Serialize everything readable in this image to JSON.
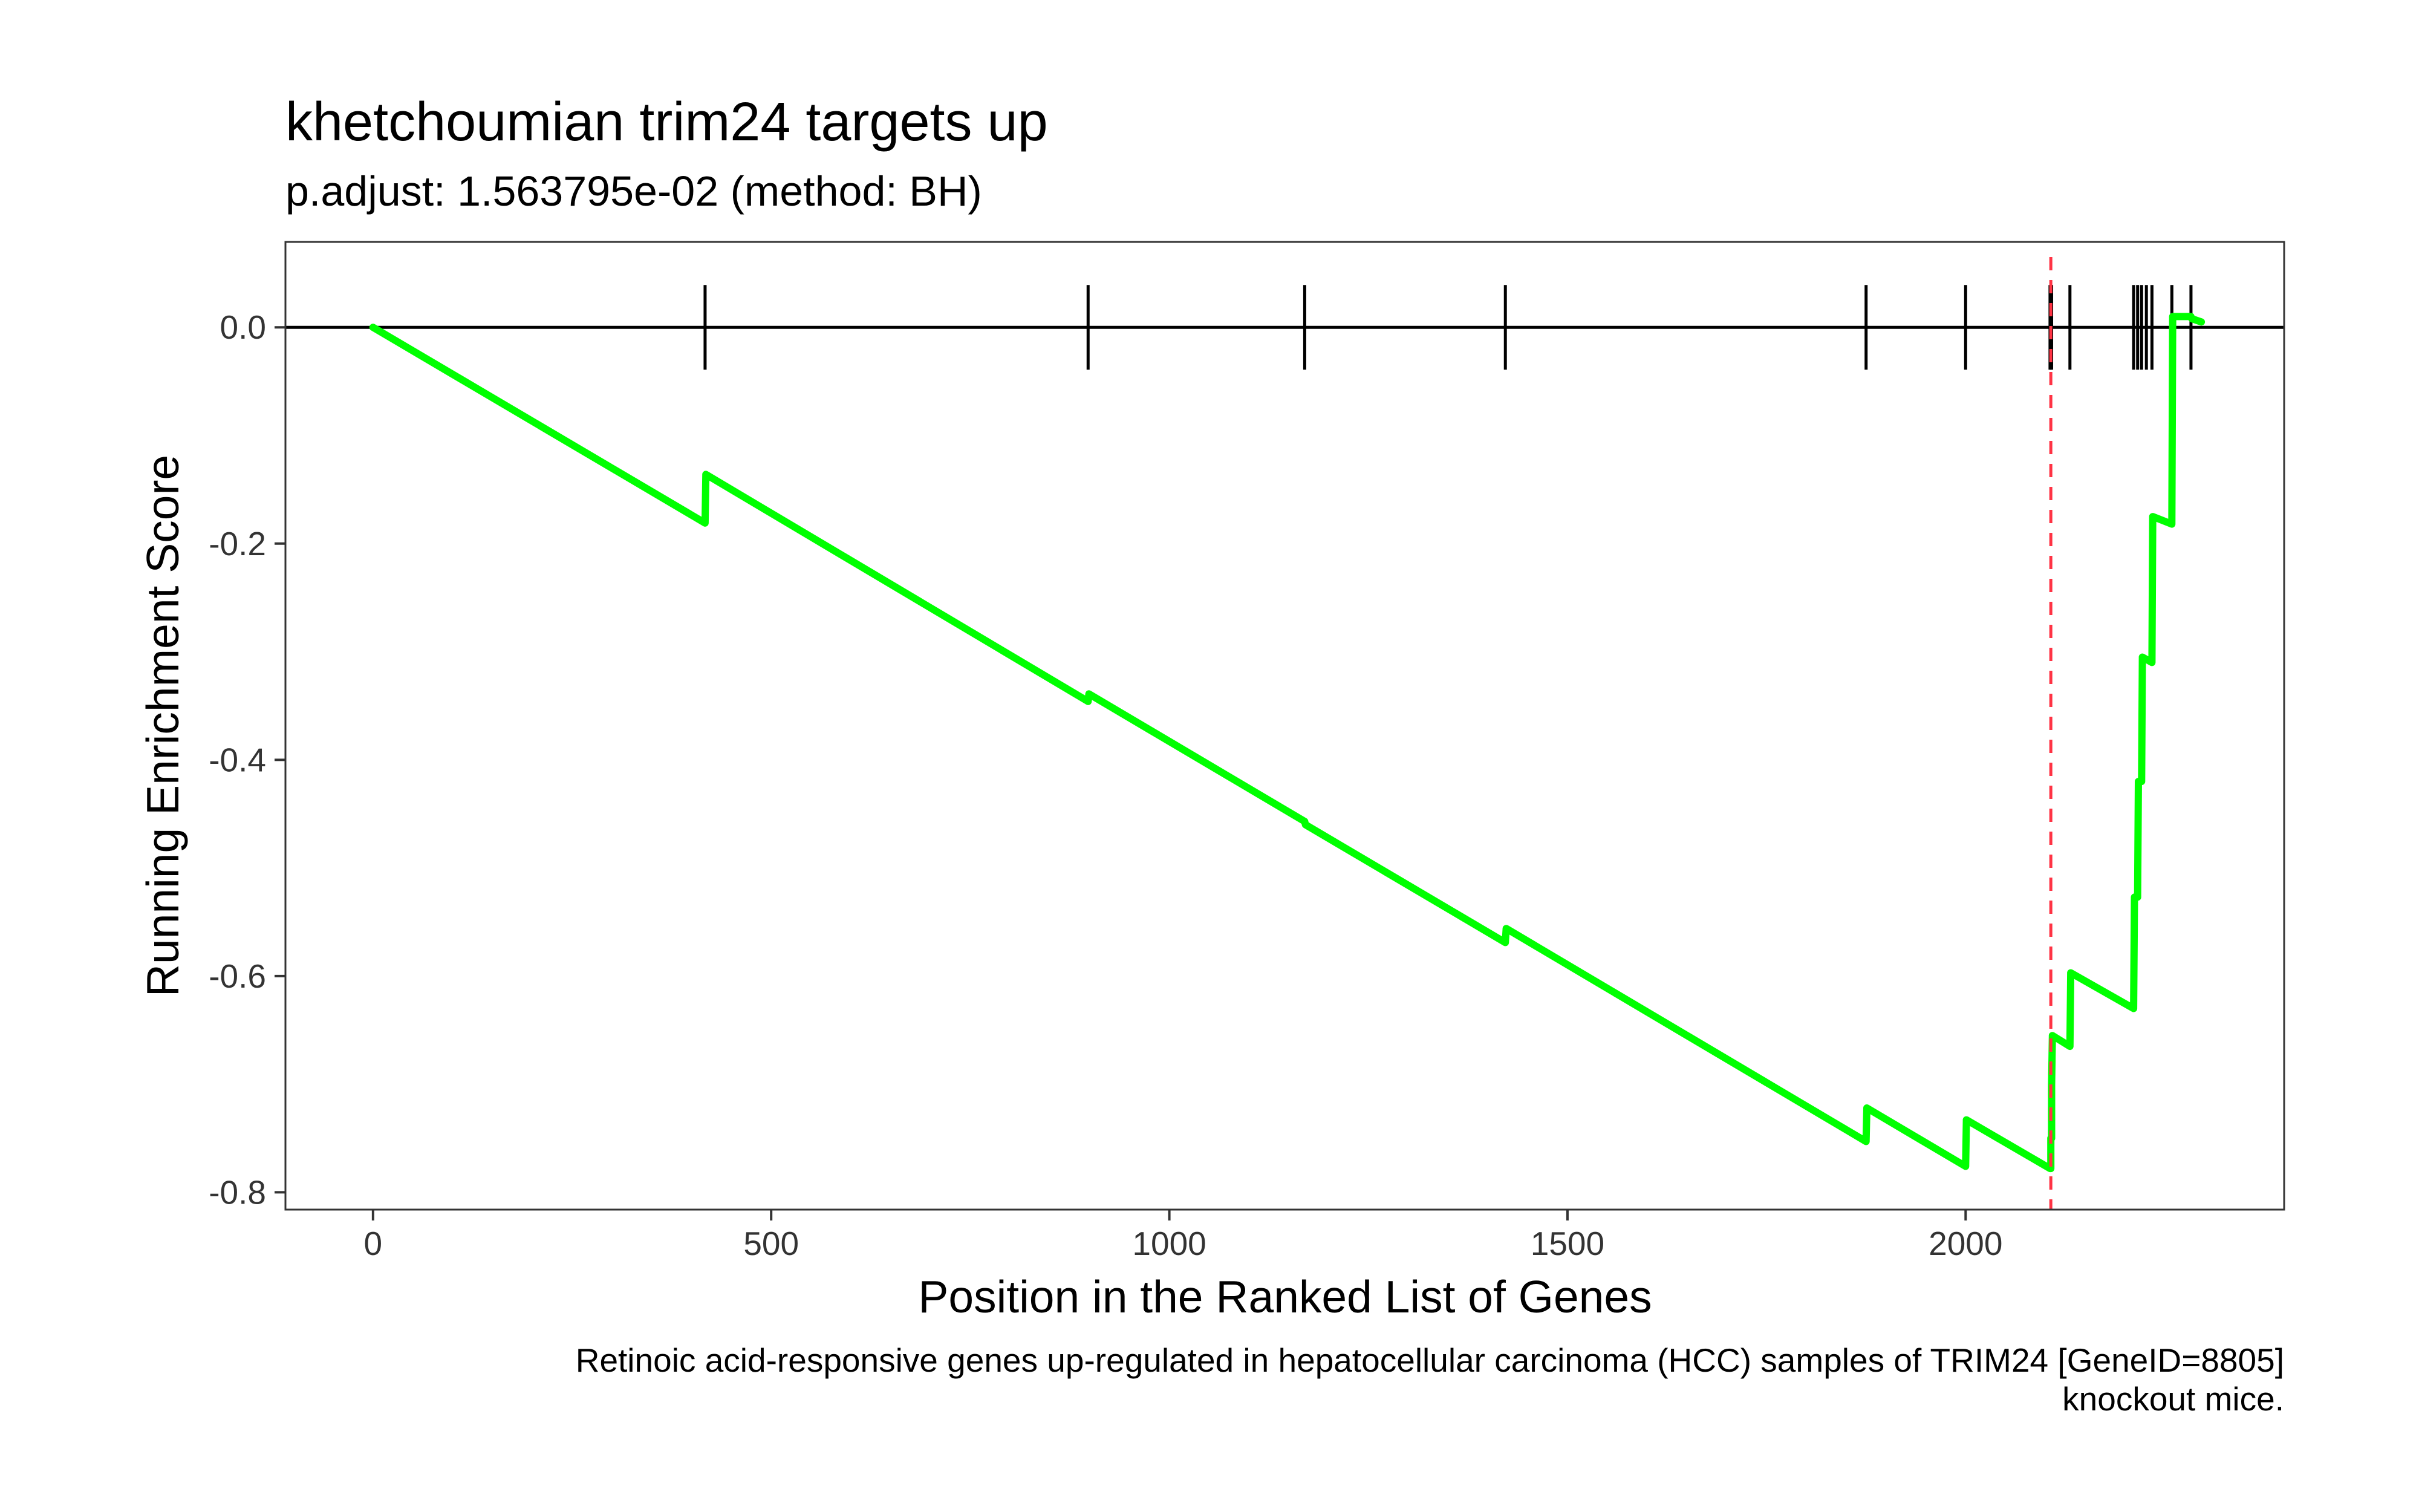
{
  "chart_data": {
    "type": "line",
    "title": "khetchoumian trim24 targets up",
    "subtitle": "p.adjust: 1.563795e-02 (method: BH)",
    "xlabel": "Position in the Ranked List of Genes",
    "ylabel": "Running Enrichment Score",
    "caption_lines": [
      "Retinoic acid-responsive genes up-regulated in hepatocellular carcinoma (HCC) samples of TRIM24 [GeneID=8805]",
      "knockout mice."
    ],
    "xlim": [
      -110,
      2400
    ],
    "ylim": [
      -0.816,
      0.079
    ],
    "x_ticks": [
      0,
      500,
      1000,
      1500,
      2000
    ],
    "x_tick_labels": [
      "0",
      "500",
      "1000",
      "1500",
      "2000"
    ],
    "y_ticks": [
      0.0,
      -0.2,
      -0.4,
      -0.6,
      -0.8
    ],
    "y_tick_labels": [
      "0.0",
      "-0.2",
      "-0.4",
      "-0.6",
      "-0.8"
    ],
    "grid": false,
    "series": [
      {
        "color": "#00ff00",
        "x": [
          0,
          417,
          418,
          898,
          899,
          1170,
          1171,
          1422,
          1423,
          1875,
          1876,
          2000,
          2001,
          2106,
          2107,
          2107,
          2108,
          2108,
          2109,
          2131,
          2132,
          2211,
          2212,
          2216,
          2217,
          2221,
          2222,
          2234,
          2235,
          2259,
          2260,
          2283,
          2284,
          2296
        ],
        "y": [
          0.0,
          -0.181,
          -0.136,
          -0.346,
          -0.339,
          -0.457,
          -0.46,
          -0.569,
          -0.556,
          -0.753,
          -0.722,
          -0.776,
          -0.733,
          -0.778,
          -0.778,
          -0.75,
          -0.75,
          -0.7,
          -0.655,
          -0.665,
          -0.597,
          -0.63,
          -0.527,
          -0.527,
          -0.42,
          -0.42,
          -0.305,
          -0.31,
          -0.175,
          -0.182,
          0.01,
          0.01,
          0.008,
          0.005
        ]
      }
    ],
    "gene_hits_x": [
      417,
      898,
      1170,
      1422,
      1875,
      2000,
      2106,
      2108,
      2131,
      2211,
      2216,
      2221,
      2227,
      2234,
      2259,
      2283
    ],
    "zero_line_y": 0.0,
    "marker_line": {
      "x": 2107,
      "color": "#ff3344",
      "style": "dashed"
    }
  }
}
